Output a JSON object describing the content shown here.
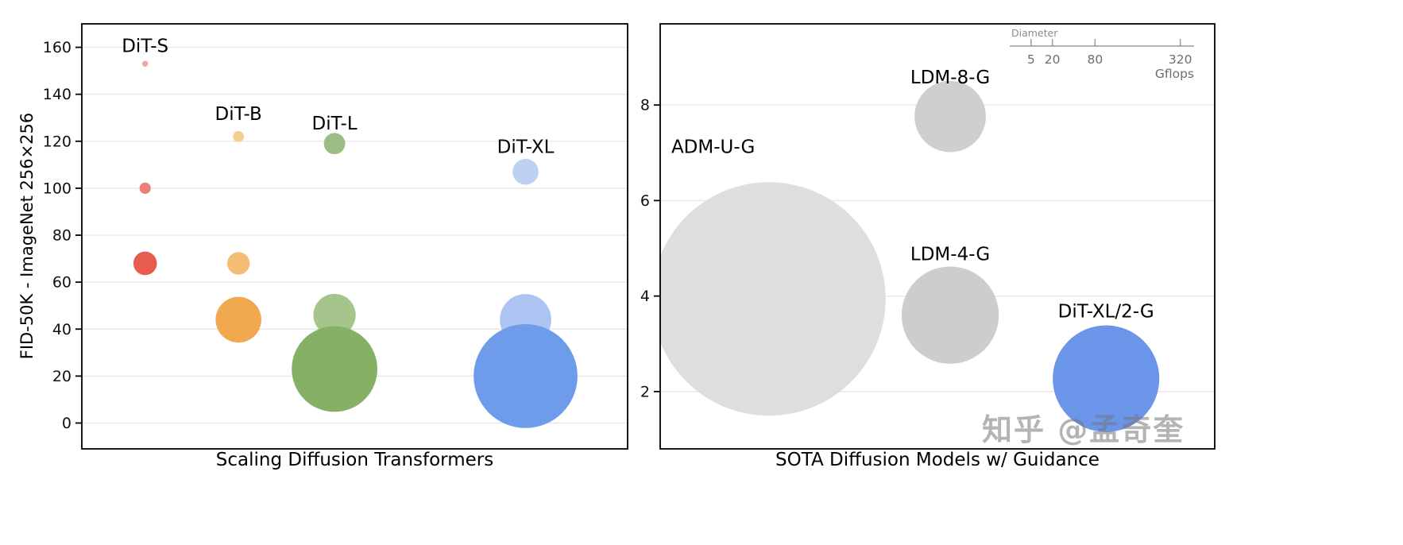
{
  "watermark": "知乎 @孟奇奎",
  "chart_data": [
    {
      "type": "bubble",
      "title": "Scaling Diffusion Transformers",
      "ylabel": "FID-50K - ImageNet 256×256",
      "ylim": [
        -11,
        170
      ],
      "yticks": [
        0,
        20,
        40,
        60,
        80,
        100,
        120,
        140,
        160
      ],
      "grid": true,
      "size_encoding": "bubble diameter proportional to sqrt(Gflops)",
      "series": [
        {
          "name": "DiT-S",
          "x": 0.116,
          "label": {
            "text": "DiT-S",
            "x": 0.116,
            "y": 158,
            "anchor": "middle"
          },
          "points": [
            {
              "fid": 153,
              "gflops": 0.4,
              "color": "#f2a6a1"
            },
            {
              "fid": 100,
              "gflops": 1.4,
              "color": "#eb7f76"
            },
            {
              "fid": 68,
              "gflops": 6.1,
              "color": "#e85c50"
            }
          ]
        },
        {
          "name": "DiT-B",
          "x": 0.287,
          "label": {
            "text": "DiT-B",
            "x": 0.287,
            "y": 129,
            "anchor": "middle"
          },
          "points": [
            {
              "fid": 122,
              "gflops": 1.3,
              "color": "#f2cf8d"
            },
            {
              "fid": 68,
              "gflops": 5.6,
              "color": "#f5bd74"
            },
            {
              "fid": 44,
              "gflops": 23.0,
              "color": "#f0a94f"
            }
          ]
        },
        {
          "name": "DiT-L",
          "x": 0.463,
          "label": {
            "text": "DiT-L",
            "x": 0.463,
            "y": 125,
            "anchor": "middle"
          },
          "points": [
            {
              "fid": 119,
              "gflops": 5.0,
              "color": "#9cbd81"
            },
            {
              "fid": 46,
              "gflops": 19.7,
              "color": "#a6c58d"
            },
            {
              "fid": 23,
              "gflops": 80.7,
              "color": "#86b066"
            }
          ]
        },
        {
          "name": "DiT-XL",
          "x": 0.813,
          "label": {
            "text": "DiT-XL",
            "x": 0.813,
            "y": 115,
            "anchor": "middle"
          },
          "points": [
            {
              "fid": 107,
              "gflops": 7.4,
              "color": "#bdd1f4"
            },
            {
              "fid": 44,
              "gflops": 29.1,
              "color": "#abc4f1"
            },
            {
              "fid": 20,
              "gflops": 118.6,
              "color": "#6e9bea"
            }
          ]
        }
      ]
    },
    {
      "type": "bubble",
      "title": "SOTA Diffusion Models w/ Guidance",
      "ylim": [
        0.8,
        9.7
      ],
      "yticks": [
        2,
        4,
        6,
        8
      ],
      "grid": true,
      "legend": {
        "title": "Diameter",
        "ticks": [
          5,
          20,
          80,
          320
        ],
        "unit": "Gflops"
      },
      "series": [
        {
          "name": "ADM-U-G",
          "x": 0.196,
          "label": {
            "text": "ADM-U-G",
            "x": 0.02,
            "y": 7.0,
            "anchor": "start"
          },
          "points": [
            {
              "fid": 3.94,
              "gflops": 600,
              "color": "#dedede"
            }
          ]
        },
        {
          "name": "LDM-8-G",
          "x": 0.523,
          "label": {
            "text": "LDM-8-G",
            "x": 0.523,
            "y": 8.45,
            "anchor": "middle"
          },
          "points": [
            {
              "fid": 7.76,
              "gflops": 56,
              "color": "#cfcfd1"
            }
          ]
        },
        {
          "name": "LDM-4-G",
          "x": 0.523,
          "label": {
            "text": "LDM-4-G",
            "x": 0.523,
            "y": 4.75,
            "anchor": "middle"
          },
          "points": [
            {
              "fid": 3.6,
              "gflops": 104,
              "color": "#cdcdcf"
            }
          ]
        },
        {
          "name": "DiT-XL/2-G",
          "x": 0.804,
          "label": {
            "text": "DiT-XL/2-G",
            "x": 0.804,
            "y": 3.55,
            "anchor": "middle"
          },
          "points": [
            {
              "fid": 2.27,
              "gflops": 125,
              "color": "#6a95e8"
            }
          ]
        }
      ]
    }
  ]
}
